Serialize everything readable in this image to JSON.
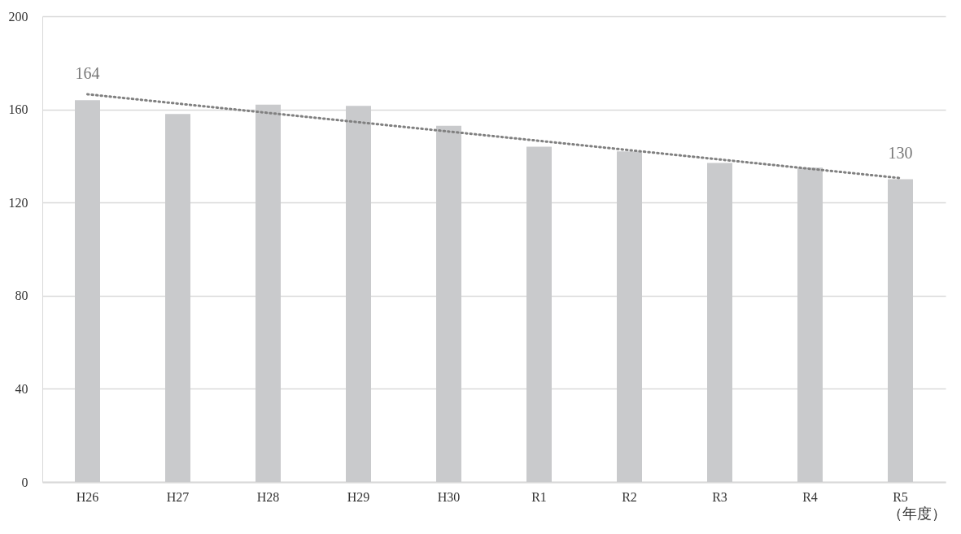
{
  "chart_data": {
    "type": "bar",
    "xlabel": "（年度）",
    "categories": [
      "H26",
      "H27",
      "H28",
      "H29",
      "H30",
      "R1",
      "R2",
      "R3",
      "R4",
      "R5"
    ],
    "series": [
      {
        "color": "#c9cacc",
        "values": [
          164,
          158,
          162,
          161.5,
          153,
          144,
          142,
          137,
          135,
          130
        ],
        "value_labels": [
          "164",
          null,
          null,
          null,
          null,
          null,
          null,
          null,
          null,
          "130"
        ]
      },
      {
        "type": "line",
        "color": "#808080",
        "line_style": "dotted",
        "x": [
          "H26",
          "R5"
        ],
        "values": [
          166.5,
          130.5
        ]
      }
    ],
    "ylim": [
      0,
      200
    ],
    "yticks": [
      0,
      40,
      80,
      120,
      160,
      200
    ],
    "grid": "y"
  }
}
